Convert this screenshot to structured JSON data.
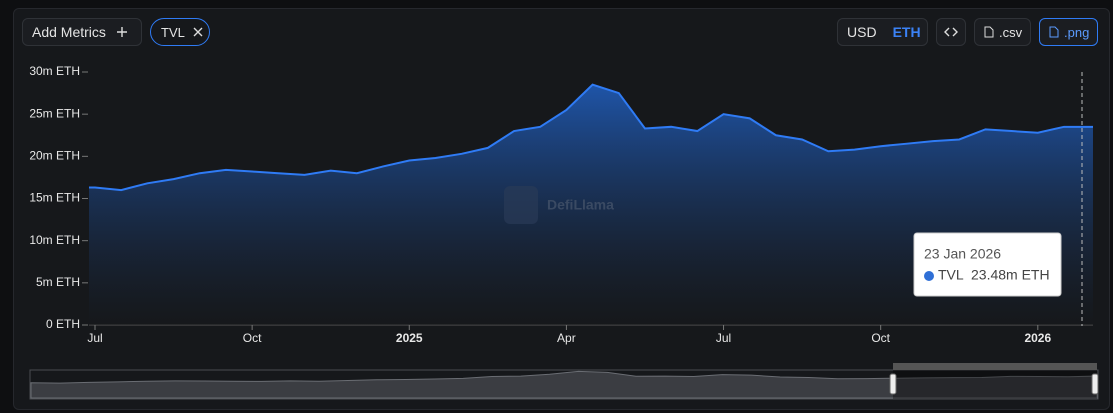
{
  "toolbar": {
    "add_metrics": "Add Metrics",
    "currency_usd": "USD",
    "currency_eth": "ETH",
    "csv": ".csv",
    "png": ".png"
  },
  "watermark": "DefiLlama",
  "tooltip": {
    "date": "23 Jan 2026",
    "series": "TVL",
    "value": "23.48m ETH"
  },
  "chart_data": {
    "type": "area",
    "categories": [
      "Jul",
      null,
      null,
      null,
      null,
      null,
      "Oct",
      null,
      null,
      null,
      null,
      null,
      "2025",
      null,
      null,
      null,
      null,
      null,
      "Apr",
      null,
      null,
      null,
      null,
      null,
      "Jul",
      null,
      null,
      null,
      null,
      null,
      "Oct",
      null,
      null,
      null,
      null,
      null,
      "2026",
      null
    ],
    "series": [
      {
        "name": "TVL",
        "color": "#2f7bf5",
        "values": [
          16300000,
          16000000,
          16800000,
          17300000,
          18000000,
          18400000,
          18200000,
          18000000,
          17800000,
          18300000,
          18000000,
          18800000,
          19500000,
          19800000,
          20300000,
          21000000,
          23000000,
          23500000,
          25500000,
          28500000,
          27500000,
          23300000,
          23500000,
          23000000,
          25000000,
          24500000,
          22500000,
          22000000,
          20600000,
          20800000,
          21200000,
          21500000,
          21800000,
          22000000,
          23200000,
          23000000,
          22800000,
          23500000
        ]
      }
    ],
    "ylim": [
      0,
      30000000
    ],
    "yticks": [
      {
        "value": 0,
        "label": "0 ETH"
      },
      {
        "value": 5000000,
        "label": "5m ETH"
      },
      {
        "value": 10000000,
        "label": "10m ETH"
      },
      {
        "value": 15000000,
        "label": "15m ETH"
      },
      {
        "value": 20000000,
        "label": "20m ETH"
      },
      {
        "value": 25000000,
        "label": "25m ETH"
      },
      {
        "value": 30000000,
        "label": "30m ETH"
      }
    ]
  }
}
